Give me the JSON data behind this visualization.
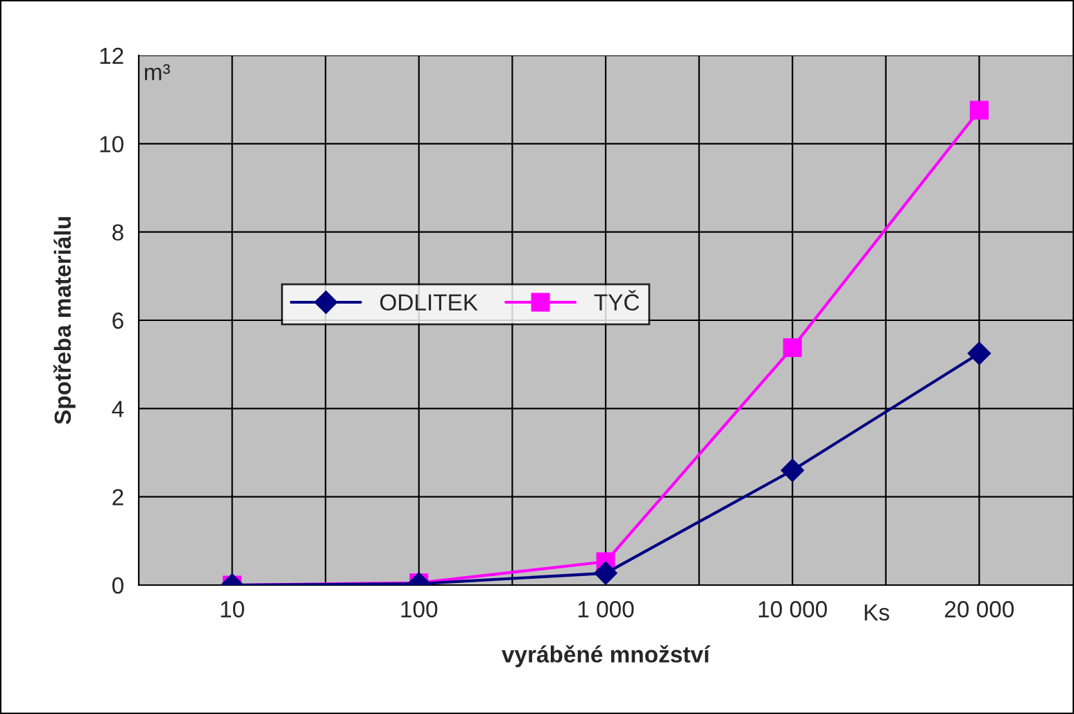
{
  "chart_data": {
    "type": "line",
    "xlabel": "vyráběné množství",
    "ylabel": "Spotřeba materiálu",
    "categories": [
      "10",
      "100",
      "1 000",
      "10 000",
      "20 000"
    ],
    "series": [
      {
        "name": "ODLITEK",
        "color": "#000080",
        "marker": "diamond",
        "values": [
          0,
          0.03,
          0.27,
          2.6,
          5.25
        ]
      },
      {
        "name": "TYČ",
        "color": "#ff00ff",
        "marker": "square",
        "values": [
          0,
          0.05,
          0.53,
          5.38,
          10.76
        ]
      }
    ],
    "ylim": [
      0,
      12
    ],
    "yticks": [
      0,
      2,
      4,
      6,
      8,
      10,
      12
    ],
    "grid": true,
    "legend": "center",
    "annotations": [
      "m³",
      "Ks"
    ],
    "line_style": "solid"
  }
}
